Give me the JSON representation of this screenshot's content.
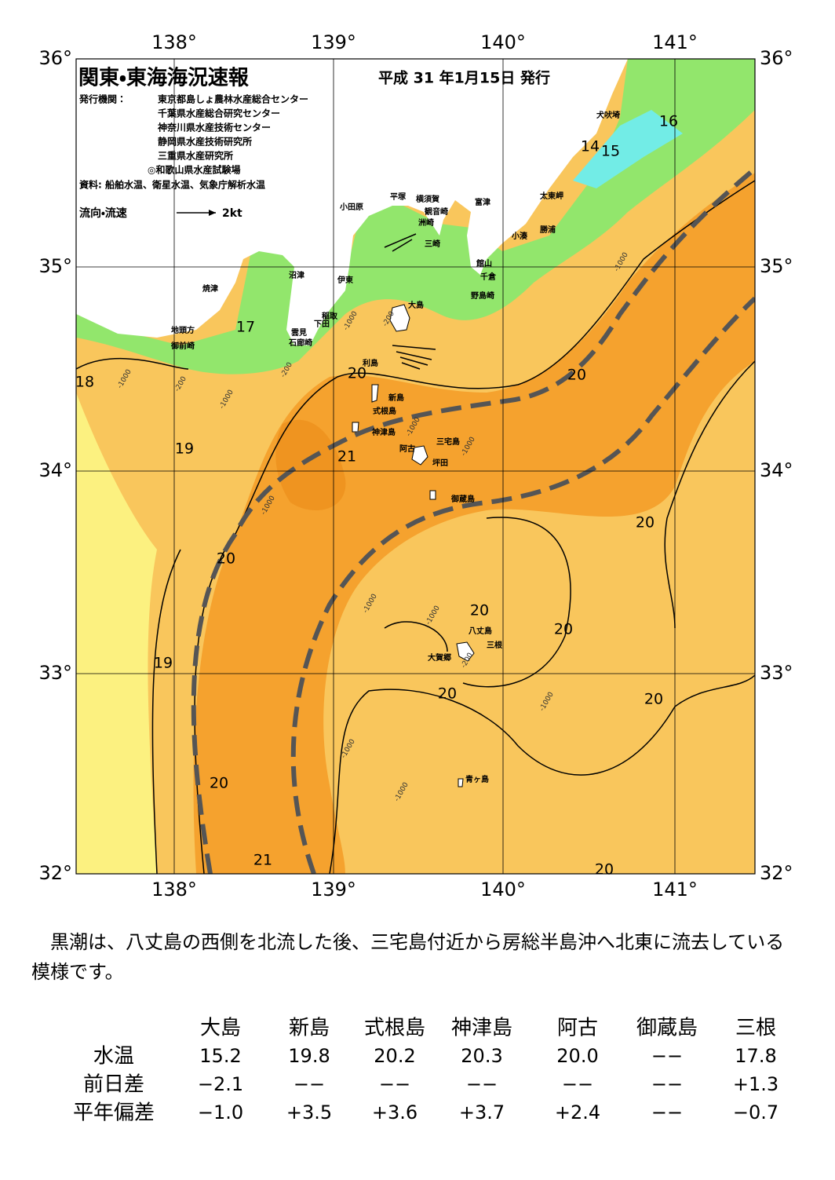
{
  "header": {
    "title": "関東・東海海況速報",
    "issued": "平成 31 年1月15日 発行",
    "publishers_label": "発行機関：",
    "publishers": [
      "東京都島しょ農林水産総合センター",
      "千葉県水産総合研究センター",
      "神奈川県水産技術センター",
      "静岡県水産技術研究所",
      "三重県水産研究所",
      "◎和歌山県水産試験場"
    ],
    "source": "資料: 船舶水温、衛星水温、気象庁解析水温",
    "legend_label": "流向・流速",
    "legend_scale": "2kt"
  },
  "map": {
    "lon_labels": [
      "138°",
      "139°",
      "140°",
      "141°"
    ],
    "lat_labels": [
      "36°",
      "35°",
      "34°",
      "33°",
      "32°"
    ],
    "places": [
      "犬吠埼",
      "太東岬",
      "勝浦",
      "小湊",
      "富津",
      "横須賀",
      "観音崎",
      "洲崎",
      "平塚",
      "小田原",
      "三崎",
      "館山",
      "千倉",
      "野島崎",
      "沼津",
      "伊東",
      "焼津",
      "稲取",
      "下田",
      "雲見",
      "石廊崎",
      "地頭方",
      "御前崎",
      "大島",
      "利島",
      "新島",
      "式根島",
      "神津島",
      "阿古",
      "三宅島",
      "坪田",
      "御蔵島",
      "八丈島",
      "三根",
      "大賀郷",
      "青ヶ島"
    ],
    "isotherm_labels": [
      "16",
      "14",
      "15",
      "17",
      "18",
      "20",
      "20",
      "19",
      "21",
      "20",
      "20",
      "20",
      "20",
      "19",
      "20",
      "20",
      "20",
      "21",
      "20"
    ],
    "depth_labels": [
      "-1000",
      "-200",
      "-1000",
      "-200",
      "-1000",
      "-1000",
      "-200",
      "-1000",
      "-1000",
      "-1000",
      "-1000",
      "-1000",
      "-200",
      "-1000",
      "-1000",
      "-1000"
    ]
  },
  "summary": "黒潮は、八丈島の西側を北流した後、三宅島付近から房総半島沖へ北東に流去している模様です。",
  "table": {
    "columns": [
      "大島",
      "新島",
      "式根島",
      "神津島",
      "阿古",
      "御蔵島",
      "三根"
    ],
    "rows": [
      {
        "label": "水温",
        "cells": [
          "15.2",
          "19.8",
          "20.2",
          "20.3",
          "20.0",
          "−−",
          "17.8"
        ]
      },
      {
        "label": "前日差",
        "cells": [
          "−2.1",
          "−−",
          "−−",
          "−−",
          "−−",
          "−−",
          "+1.3"
        ]
      },
      {
        "label": "平年偏差",
        "cells": [
          "−1.0",
          "+3.5",
          "+3.6",
          "+3.7",
          "+2.4",
          "−−",
          "−0.7"
        ]
      }
    ]
  }
}
